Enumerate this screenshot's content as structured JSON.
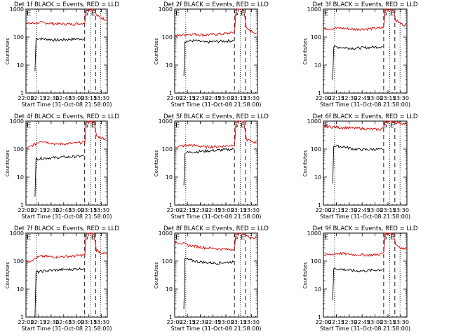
{
  "chart_data": [
    {
      "type": "line",
      "title": "Det 1f BLACK = Events, RED = LLD",
      "xlabel": "Start Time (31-Oct-08 21:58:00)",
      "ylabel": "Counts/sec",
      "x_ticks": [
        "22:00",
        "22:15",
        "22:30",
        "22:45",
        "23:00",
        "23:15",
        "23:30"
      ],
      "y_ticks": [
        "1",
        "10",
        "100",
        "1000"
      ],
      "ylim": [
        1,
        1000
      ],
      "scale_y": "log",
      "xlim": [
        "22:00",
        "23:37"
      ],
      "markers": {
        "dotted": [
          "22:13",
          "23:17",
          "23:29"
        ],
        "dashed": [
          "23:10",
          "23:23"
        ],
        "S": "S",
        "E": "E",
        "E_left": "E"
      },
      "series": [
        {
          "color": "#000000",
          "start": "22:11",
          "values": [
            [
              22.18,
              6
            ],
            [
              22.2,
              90
            ],
            [
              22.4,
              85
            ],
            [
              22.6,
              78
            ],
            [
              22.8,
              82
            ],
            [
              23.0,
              86
            ],
            [
              23.15,
              88
            ]
          ]
        },
        {
          "color": "#dd0000",
          "values": [
            [
              22.0,
              300
            ],
            [
              22.3,
              330
            ],
            [
              22.6,
              300
            ],
            [
              22.9,
              290
            ],
            [
              23.1,
              310
            ],
            [
              23.17,
              330
            ],
            [
              23.2,
              1000
            ],
            [
              23.35,
              1000
            ],
            [
              23.4,
              600
            ],
            [
              23.5,
              480
            ],
            [
              23.6,
              420
            ]
          ]
        }
      ]
    },
    {
      "type": "line",
      "title": "Det 2f BLACK = Events, RED = LLD",
      "xlabel": "Start Time (31-Oct-08 21:58:00)",
      "ylabel": "Counts/sec",
      "x_ticks": [
        "22:00",
        "22:15",
        "22:30",
        "22:45",
        "23:00",
        "23:15",
        "23:30"
      ],
      "y_ticks": [
        "1",
        "10",
        "100",
        "1000"
      ],
      "ylim": [
        1,
        1000
      ],
      "scale_y": "log",
      "xlim": [
        "22:00",
        "23:37"
      ],
      "markers": {
        "dotted": [
          "22:13",
          "23:17",
          "23:29"
        ],
        "dashed": [
          "23:10",
          "23:23"
        ],
        "S": "S",
        "E": "E",
        "E_left": "E"
      },
      "series": [
        {
          "color": "#000000",
          "values": [
            [
              22.18,
              4
            ],
            [
              22.2,
              70
            ],
            [
              22.4,
              75
            ],
            [
              22.6,
              65
            ],
            [
              22.8,
              70
            ],
            [
              23.0,
              72
            ],
            [
              23.15,
              75
            ]
          ]
        },
        {
          "color": "#dd0000",
          "values": [
            [
              22.0,
              110
            ],
            [
              22.3,
              130
            ],
            [
              22.6,
              120
            ],
            [
              22.9,
              130
            ],
            [
              23.1,
              140
            ],
            [
              23.17,
              150
            ],
            [
              23.2,
              1000
            ],
            [
              23.35,
              1000
            ],
            [
              23.4,
              200
            ],
            [
              23.5,
              160
            ],
            [
              23.6,
              140
            ]
          ]
        }
      ]
    },
    {
      "type": "line",
      "title": "Det 3f BLACK = Events, RED = LLD",
      "xlabel": "Start Time (31-Oct-08 21:58:00)",
      "ylabel": "Counts/sec",
      "x_ticks": [
        "22:00",
        "22:15",
        "22:30",
        "22:45",
        "23:00",
        "23:15",
        "23:30"
      ],
      "y_ticks": [
        "1",
        "10",
        "100",
        "1000"
      ],
      "ylim": [
        1,
        1000
      ],
      "scale_y": "log",
      "xlim": [
        "22:00",
        "23:37"
      ],
      "markers": {
        "dotted": [
          "22:13",
          "23:17",
          "23:29"
        ],
        "dashed": [
          "23:10",
          "23:23"
        ],
        "S": "S",
        "E": "E",
        "E_left": "E"
      },
      "series": [
        {
          "color": "#000000",
          "values": [
            [
              22.18,
              3
            ],
            [
              22.2,
              45
            ],
            [
              22.4,
              42
            ],
            [
              22.6,
              40
            ],
            [
              22.8,
              42
            ],
            [
              23.0,
              44
            ],
            [
              23.15,
              46
            ]
          ]
        },
        {
          "color": "#dd0000",
          "values": [
            [
              22.0,
              200
            ],
            [
              22.3,
              210
            ],
            [
              22.6,
              190
            ],
            [
              22.9,
              200
            ],
            [
              23.1,
              210
            ],
            [
              23.17,
              230
            ],
            [
              23.2,
              1000
            ],
            [
              23.35,
              1000
            ],
            [
              23.4,
              400
            ],
            [
              23.5,
              300
            ],
            [
              23.6,
              260
            ]
          ]
        }
      ]
    },
    {
      "type": "line",
      "title": "Det 4f BLACK = Events, RED = LLD",
      "xlabel": "Start Time (31-Oct-08 21:58:00)",
      "ylabel": "Counts/sec",
      "x_ticks": [
        "22:00",
        "22:15",
        "22:30",
        "22:45",
        "23:00",
        "23:15",
        "23:30"
      ],
      "y_ticks": [
        "1",
        "10",
        "100",
        "1000"
      ],
      "ylim": [
        1,
        1000
      ],
      "scale_y": "log",
      "xlim": [
        "22:00",
        "23:37"
      ],
      "markers": {
        "dotted": [
          "22:13",
          "23:17",
          "23:29"
        ],
        "dashed": [
          "23:10",
          "23:23"
        ],
        "S": "S",
        "E": "E",
        "E_left": "E"
      },
      "series": [
        {
          "color": "#000000",
          "values": [
            [
              22.18,
              2
            ],
            [
              22.2,
              45
            ],
            [
              22.4,
              48
            ],
            [
              22.6,
              50
            ],
            [
              22.8,
              52
            ],
            [
              23.0,
              55
            ],
            [
              23.15,
              58
            ]
          ]
        },
        {
          "color": "#dd0000",
          "values": [
            [
              22.0,
              100
            ],
            [
              22.3,
              200
            ],
            [
              22.6,
              150
            ],
            [
              22.9,
              160
            ],
            [
              23.1,
              170
            ],
            [
              23.17,
              180
            ],
            [
              23.2,
              1000
            ],
            [
              23.35,
              1000
            ],
            [
              23.4,
              300
            ],
            [
              23.5,
              250
            ],
            [
              23.6,
              230
            ]
          ]
        }
      ]
    },
    {
      "type": "line",
      "title": "Det 5f BLACK = Events, RED = LLD",
      "xlabel": "Start Time (31-Oct-08 21:58:00)",
      "ylabel": "Counts/sec",
      "x_ticks": [
        "22:00",
        "22:15",
        "22:30",
        "22:45",
        "23:00",
        "23:15",
        "23:30"
      ],
      "y_ticks": [
        "1",
        "10",
        "100",
        "1000"
      ],
      "ylim": [
        1,
        1000
      ],
      "scale_y": "log",
      "xlim": [
        "22:00",
        "23:37"
      ],
      "markers": {
        "dotted": [
          "22:13",
          "23:17",
          "23:29"
        ],
        "dashed": [
          "23:10",
          "23:23"
        ],
        "S": "S",
        "E": "E",
        "E_left": "E"
      },
      "series": [
        {
          "color": "#000000",
          "values": [
            [
              22.18,
              5
            ],
            [
              22.2,
              75
            ],
            [
              22.4,
              80
            ],
            [
              22.6,
              85
            ],
            [
              22.8,
              90
            ],
            [
              23.0,
              95
            ],
            [
              23.15,
              100
            ]
          ]
        },
        {
          "color": "#dd0000",
          "values": [
            [
              22.0,
              120
            ],
            [
              22.3,
              140
            ],
            [
              22.6,
              120
            ],
            [
              22.9,
              125
            ],
            [
              23.1,
              135
            ],
            [
              23.17,
              145
            ],
            [
              23.2,
              1000
            ],
            [
              23.35,
              1000
            ],
            [
              23.4,
              220
            ],
            [
              23.5,
              190
            ],
            [
              23.6,
              170
            ]
          ]
        }
      ]
    },
    {
      "type": "line",
      "title": "Det 6f BLACK = Events, RED = LLD",
      "xlabel": "Start Time (31-Oct-08 21:58:00)",
      "ylabel": "Counts/sec",
      "x_ticks": [
        "22:00",
        "22:15",
        "22:30",
        "22:45",
        "23:00",
        "23:15",
        "23:30"
      ],
      "y_ticks": [
        "1",
        "10",
        "100",
        "1000"
      ],
      "ylim": [
        1,
        1000
      ],
      "scale_y": "log",
      "xlim": [
        "22:00",
        "23:37"
      ],
      "markers": {
        "dotted": [
          "22:13",
          "23:17",
          "23:29"
        ],
        "dashed": [
          "23:10",
          "23:23"
        ],
        "S": "S",
        "E": "E",
        "E_left": "E"
      },
      "series": [
        {
          "color": "#000000",
          "values": [
            [
              22.18,
              6
            ],
            [
              22.2,
              130
            ],
            [
              22.4,
              120
            ],
            [
              22.6,
              100
            ],
            [
              22.8,
              95
            ],
            [
              23.0,
              100
            ],
            [
              23.15,
              95
            ]
          ]
        },
        {
          "color": "#dd0000",
          "values": [
            [
              22.0,
              650
            ],
            [
              22.3,
              600
            ],
            [
              22.6,
              560
            ],
            [
              22.9,
              520
            ],
            [
              23.1,
              500
            ],
            [
              23.17,
              600
            ],
            [
              23.2,
              1000
            ],
            [
              23.35,
              1000
            ],
            [
              23.4,
              900
            ],
            [
              23.5,
              850
            ],
            [
              23.6,
              800
            ]
          ]
        }
      ]
    },
    {
      "type": "line",
      "title": "Det 7f BLACK = Events, RED = LLD",
      "xlabel": "Start Time (31-Oct-08 21:58:00)",
      "ylabel": "Counts/sec",
      "x_ticks": [
        "22:00",
        "22:15",
        "22:30",
        "22:45",
        "23:00",
        "23:15",
        "23:30"
      ],
      "y_ticks": [
        "1",
        "10",
        "100",
        "1000"
      ],
      "ylim": [
        1,
        1000
      ],
      "scale_y": "log",
      "xlim": [
        "22:00",
        "23:37"
      ],
      "markers": {
        "dotted": [
          "22:13",
          "23:17",
          "23:29"
        ],
        "dashed": [
          "23:10",
          "23:23"
        ],
        "S": "S",
        "E": "E",
        "E_left": "E"
      },
      "series": [
        {
          "color": "#000000",
          "values": [
            [
              22.18,
              1
            ],
            [
              22.2,
              40
            ],
            [
              22.4,
              45
            ],
            [
              22.6,
              48
            ],
            [
              22.8,
              50
            ],
            [
              23.0,
              52
            ],
            [
              23.15,
              55
            ]
          ]
        },
        {
          "color": "#dd0000",
          "values": [
            [
              22.0,
              90
            ],
            [
              22.3,
              150
            ],
            [
              22.6,
              140
            ],
            [
              22.9,
              150
            ],
            [
              23.1,
              160
            ],
            [
              23.17,
              170
            ],
            [
              23.2,
              1000
            ],
            [
              23.35,
              1000
            ],
            [
              23.4,
              250
            ],
            [
              23.5,
              200
            ],
            [
              23.6,
              180
            ]
          ]
        }
      ]
    },
    {
      "type": "line",
      "title": "Det 8f BLACK = Events, RED = LLD",
      "xlabel": "Start Time (31-Oct-08 21:58:00)",
      "ylabel": "Counts/sec",
      "x_ticks": [
        "22:00",
        "22:15",
        "22:30",
        "22:45",
        "23:00",
        "23:15",
        "23:30"
      ],
      "y_ticks": [
        "1",
        "10",
        "100",
        "1000"
      ],
      "ylim": [
        1,
        1000
      ],
      "scale_y": "log",
      "xlim": [
        "22:00",
        "23:37"
      ],
      "markers": {
        "dotted": [
          "22:13",
          "23:17",
          "23:29"
        ],
        "dashed": [
          "23:10",
          "23:23"
        ],
        "S": "S",
        "E": "E",
        "E_left": "E"
      },
      "series": [
        {
          "color": "#000000",
          "values": [
            [
              22.18,
              2
            ],
            [
              22.2,
              120
            ],
            [
              22.4,
              100
            ],
            [
              22.6,
              90
            ],
            [
              22.8,
              85
            ],
            [
              23.0,
              90
            ],
            [
              23.15,
              95
            ]
          ]
        },
        {
          "color": "#dd0000",
          "values": [
            [
              22.0,
              500
            ],
            [
              22.3,
              360
            ],
            [
              22.6,
              300
            ],
            [
              22.9,
              270
            ],
            [
              23.1,
              260
            ],
            [
              23.17,
              290
            ],
            [
              23.2,
              1000
            ],
            [
              23.35,
              1000
            ],
            [
              23.4,
              800
            ],
            [
              23.5,
              700
            ],
            [
              23.6,
              680
            ]
          ]
        }
      ]
    },
    {
      "type": "line",
      "title": "Det 9f BLACK = Events, RED = LLD",
      "xlabel": "Start Time (31-Oct-08 21:58:00)",
      "ylabel": "Counts/sec",
      "x_ticks": [
        "22:00",
        "22:15",
        "22:30",
        "22:45",
        "23:00",
        "23:15",
        "23:30"
      ],
      "y_ticks": [
        "1",
        "10",
        "100",
        "1000"
      ],
      "ylim": [
        1,
        1000
      ],
      "scale_y": "log",
      "xlim": [
        "22:00",
        "23:37"
      ],
      "markers": {
        "dotted": [
          "22:13",
          "23:17",
          "23:29"
        ],
        "dashed": [
          "23:10",
          "23:23"
        ],
        "S": "S",
        "E": "E",
        "E_left": "E"
      },
      "series": [
        {
          "color": "#000000",
          "values": [
            [
              22.18,
              4
            ],
            [
              22.2,
              55
            ],
            [
              22.4,
              50
            ],
            [
              22.6,
              45
            ],
            [
              22.8,
              45
            ],
            [
              23.0,
              48
            ],
            [
              23.15,
              50
            ]
          ]
        },
        {
          "color": "#dd0000",
          "values": [
            [
              22.0,
              160
            ],
            [
              22.3,
              190
            ],
            [
              22.6,
              170
            ],
            [
              22.9,
              165
            ],
            [
              23.1,
              175
            ],
            [
              23.17,
              200
            ],
            [
              23.2,
              1000
            ],
            [
              23.35,
              1000
            ],
            [
              23.4,
              400
            ],
            [
              23.5,
              300
            ],
            [
              23.6,
              260
            ]
          ]
        }
      ]
    }
  ]
}
